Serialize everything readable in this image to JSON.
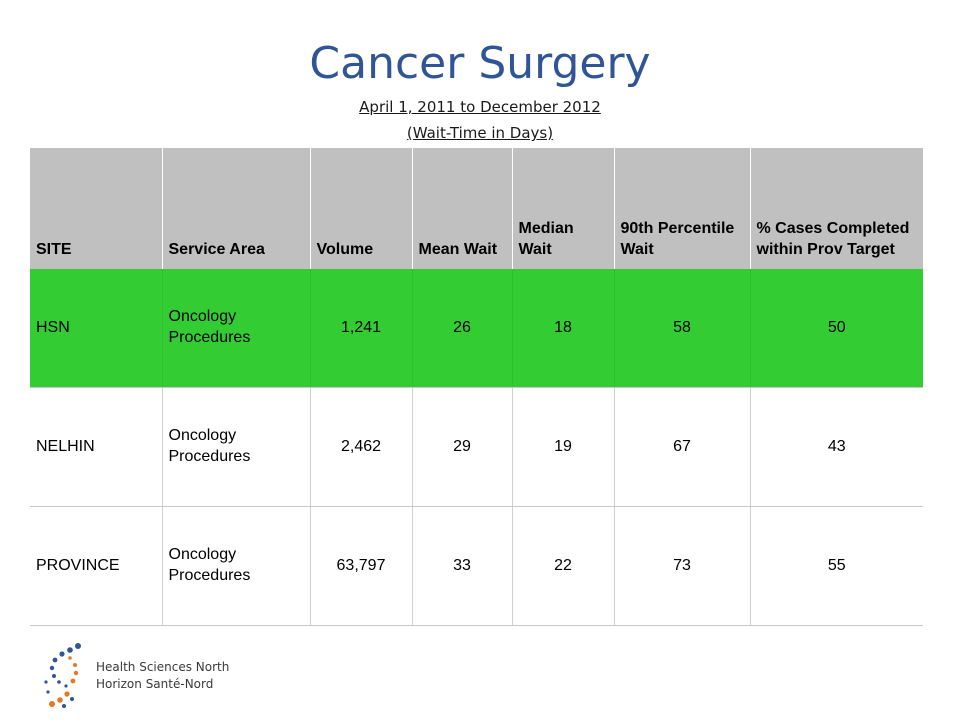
{
  "title": "Cancer Surgery",
  "subtitle_line1": "April 1, 2011 to December 2012",
  "subtitle_line2": "(Wait-Time in Days)",
  "table": {
    "headers": [
      "SITE",
      "Service Area",
      "Volume",
      "Mean Wait",
      "Median Wait",
      "90th Percentile Wait",
      "% Cases Completed within Prov Target"
    ],
    "rows": [
      {
        "site": "HSN",
        "service": "Oncology Procedures",
        "volume": "1,241",
        "mean": "26",
        "median": "18",
        "p90": "58",
        "pct": "50"
      },
      {
        "site": "NELHIN",
        "service": "Oncology Procedures",
        "volume": "2,462",
        "mean": "29",
        "median": "19",
        "p90": "67",
        "pct": "43"
      },
      {
        "site": "PROVINCE",
        "service": "Oncology Procedures",
        "volume": "63,797",
        "mean": "33",
        "median": "22",
        "p90": "73",
        "pct": "55"
      }
    ]
  },
  "logo": {
    "icon": "health-sciences-north-dots-logo",
    "line1": "Health Sciences North",
    "line2": "Horizon Santé-Nord"
  },
  "colors": {
    "title": "#2f5597",
    "header_bg": "#c0c0c0",
    "highlight_row": "#33cc33"
  }
}
